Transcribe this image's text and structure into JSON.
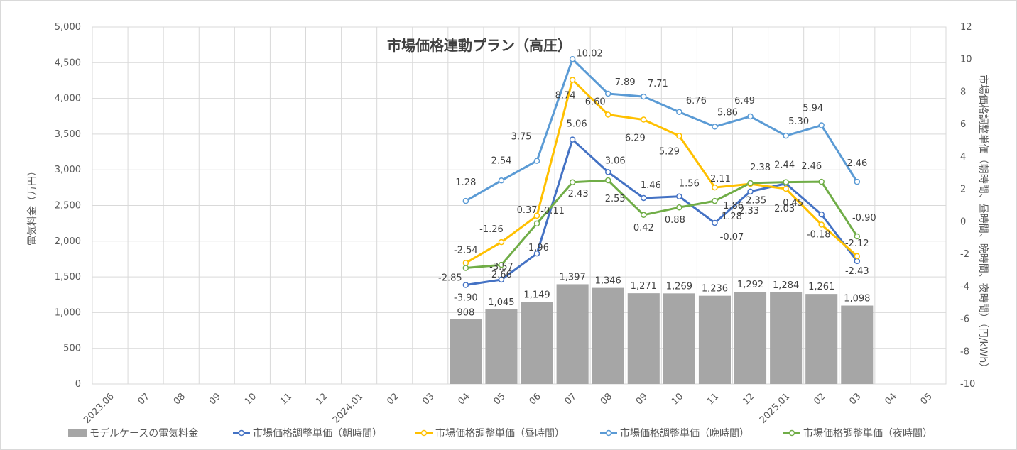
{
  "chart_data": {
    "type": "bar",
    "title": "市場価格連動プラン（高圧）",
    "xlabel": "",
    "ylabel": "電気料金（万円）",
    "y2label": "市場価格調整単価（朝時間、昼時間、晩時間、夜時間）（円/kWh）",
    "ylim": [
      0,
      5000
    ],
    "y2lim": [
      -10,
      12
    ],
    "yticks": [
      "0",
      "500",
      "1,000",
      "1,500",
      "2,000",
      "2,500",
      "3,000",
      "3,500",
      "4,000",
      "4,500",
      "5,000"
    ],
    "y2ticks": [
      "-10",
      "-8",
      "-6",
      "-4",
      "-2",
      "0",
      "2",
      "4",
      "6",
      "8",
      "10",
      "12"
    ],
    "categories": [
      "2023.06",
      "07",
      "08",
      "09",
      "10",
      "11",
      "12",
      "2024.01",
      "02",
      "03",
      "04",
      "05",
      "06",
      "07",
      "08",
      "09",
      "10",
      "11",
      "12",
      "2025.01",
      "02",
      "03",
      "04",
      "05"
    ],
    "grid": true,
    "legend_position": "bottom",
    "bars": {
      "name": "モデルケースの電気料金",
      "color": "#a6a6a6",
      "values": [
        null,
        null,
        null,
        null,
        null,
        null,
        null,
        null,
        null,
        null,
        908,
        1045,
        1149,
        1397,
        1346,
        1271,
        1269,
        1236,
        1292,
        1284,
        1261,
        1098,
        null,
        null
      ],
      "labels": [
        null,
        null,
        null,
        null,
        null,
        null,
        null,
        null,
        null,
        null,
        "908",
        "1,045",
        "1,149",
        "1,397",
        "1,346",
        "1,271",
        "1,269",
        "1,236",
        "1,292",
        "1,284",
        "1,261",
        "1,098",
        null,
        null
      ]
    },
    "series": [
      {
        "name": "市場価格調整単価（朝時間）",
        "color": "#4472c4",
        "values": [
          null,
          null,
          null,
          null,
          null,
          null,
          null,
          null,
          null,
          null,
          -3.9,
          -3.57,
          -1.96,
          5.06,
          3.06,
          1.46,
          1.56,
          -0.07,
          1.86,
          2.35,
          0.45,
          -2.43,
          null,
          null
        ],
        "labels": [
          null,
          null,
          null,
          null,
          null,
          null,
          null,
          null,
          null,
          null,
          "-3.90",
          "-3.57",
          "-1.96",
          "5.06",
          "3.06",
          "1.46",
          "1.56",
          "-0.07",
          "1.86",
          "2.35",
          "0.45",
          "-2.43",
          null,
          null
        ]
      },
      {
        "name": "市場価格調整単価（昼時間）",
        "color": "#ffc000",
        "values": [
          null,
          null,
          null,
          null,
          null,
          null,
          null,
          null,
          null,
          null,
          -2.54,
          -1.26,
          0.37,
          8.74,
          6.6,
          6.29,
          5.29,
          2.11,
          2.33,
          2.03,
          -0.18,
          -2.12,
          null,
          null
        ],
        "labels": [
          null,
          null,
          null,
          null,
          null,
          null,
          null,
          null,
          null,
          null,
          "-2.54",
          "-1.26",
          "0.37",
          "8.74",
          "6.60",
          "6.29",
          "5.29",
          "2.11",
          "2.33",
          "2.03",
          "-0.18",
          "-2.12",
          null,
          null
        ]
      },
      {
        "name": "市場価格調整単価（晩時間）",
        "color": "#5b9bd5",
        "values": [
          null,
          null,
          null,
          null,
          null,
          null,
          null,
          null,
          null,
          null,
          1.28,
          2.54,
          3.75,
          10.02,
          7.89,
          7.71,
          6.76,
          5.86,
          6.49,
          5.3,
          5.94,
          2.46,
          null,
          null
        ],
        "labels": [
          null,
          null,
          null,
          null,
          null,
          null,
          null,
          null,
          null,
          null,
          "1.28",
          "2.54",
          "3.75",
          "10.02",
          "7.89",
          "7.71",
          "6.76",
          "5.86",
          "6.49",
          "5.30",
          "5.94",
          "2.46",
          null,
          null
        ]
      },
      {
        "name": "市場価格調整単価（夜時間）",
        "color": "#70ad47",
        "values": [
          null,
          null,
          null,
          null,
          null,
          null,
          null,
          null,
          null,
          null,
          -2.85,
          -2.66,
          -0.11,
          2.43,
          2.55,
          0.42,
          0.88,
          1.28,
          2.38,
          2.44,
          2.46,
          -0.9,
          null,
          null
        ],
        "labels": [
          null,
          null,
          null,
          null,
          null,
          null,
          null,
          null,
          null,
          null,
          "-2.85",
          "-2.66",
          "-0.11",
          "2.43",
          "2.55",
          "0.42",
          "0.88",
          "1.28",
          "2.38",
          "2.44",
          "2.46",
          "-0.90",
          null,
          null
        ]
      }
    ]
  }
}
